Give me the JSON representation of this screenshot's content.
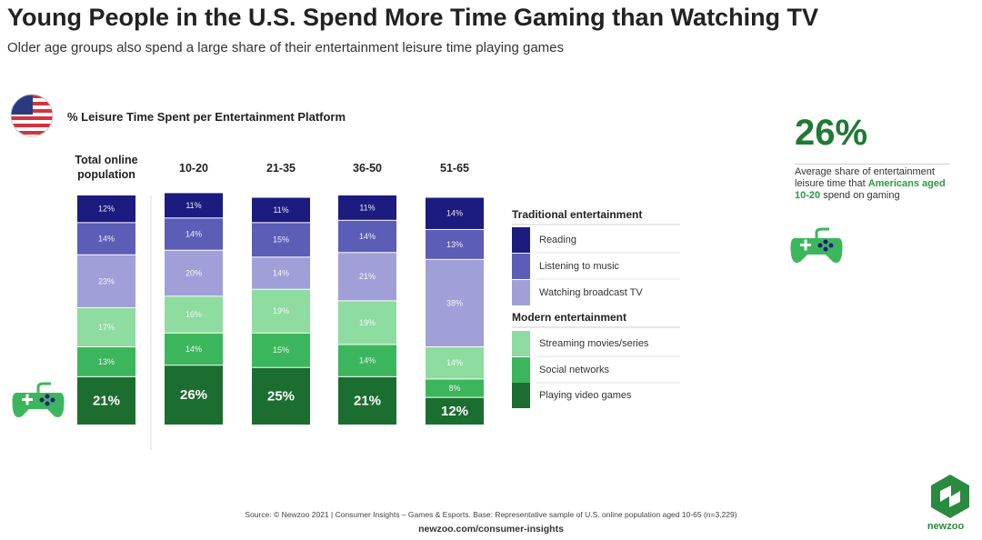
{
  "chart_data": {
    "type": "stacked_bar",
    "title": "Young People in the U.S. Spend More Time Gaming than Watching TV",
    "subtitle": "Older age groups also spend a large share of their entertainment leisure time playing games",
    "chart_label": "% Leisure Time Spent per Entertainment Platform",
    "categories": [
      "Total online population",
      "10-20",
      "21-35",
      "36-50",
      "51-65"
    ],
    "legend_headings": [
      "Traditional entertainment",
      "Modern entertainment"
    ],
    "series": [
      {
        "name": "Reading",
        "color": "#1b1b80",
        "values": [
          12,
          11,
          11,
          11,
          14
        ],
        "value_labels": [
          "12%",
          "11%",
          "11%",
          "11%",
          "14%"
        ]
      },
      {
        "name": "Listening to music",
        "color": "#5b5db6",
        "values": [
          14,
          14,
          15,
          14,
          13
        ],
        "value_labels": [
          "14%",
          "14%",
          "15%",
          "14%",
          "13%"
        ]
      },
      {
        "name": "Watching broadcast TV",
        "color": "#a09fd8",
        "values": [
          23,
          20,
          14,
          21,
          38
        ],
        "value_labels": [
          "23%",
          "20%",
          "14%",
          "21%",
          "38%"
        ]
      },
      {
        "name": "Streaming movies/series",
        "color": "#8edc9f",
        "values": [
          17,
          16,
          19,
          19,
          14
        ],
        "value_labels": [
          "17%",
          "16%",
          "19%",
          "19%",
          "14%"
        ]
      },
      {
        "name": "Social networks",
        "color": "#3cb65c",
        "values": [
          13,
          14,
          15,
          14,
          8
        ],
        "value_labels": [
          "13%",
          "14%",
          "15%",
          "14%",
          "8%"
        ]
      },
      {
        "name": "Playing video games",
        "color": "#1b6e2f",
        "values": [
          21,
          26,
          25,
          21,
          12
        ],
        "value_labels": [
          "21%",
          "26%",
          "25%",
          "21%",
          "12%"
        ]
      }
    ]
  },
  "callout": {
    "value_label": "26%",
    "text_before": "Average share of entertainment leisure time that ",
    "highlight": "Americans aged 10-20",
    "text_after": " spend on gaming"
  },
  "footer": {
    "source": "Source: © Newzoo 2021 | Consumer Insights – Games & Esports. Base: Representative sample of U.S. online population aged 10-65 (n=3,229)",
    "url": "newzoo.com/consumer-insights",
    "brand": "newzoo"
  }
}
